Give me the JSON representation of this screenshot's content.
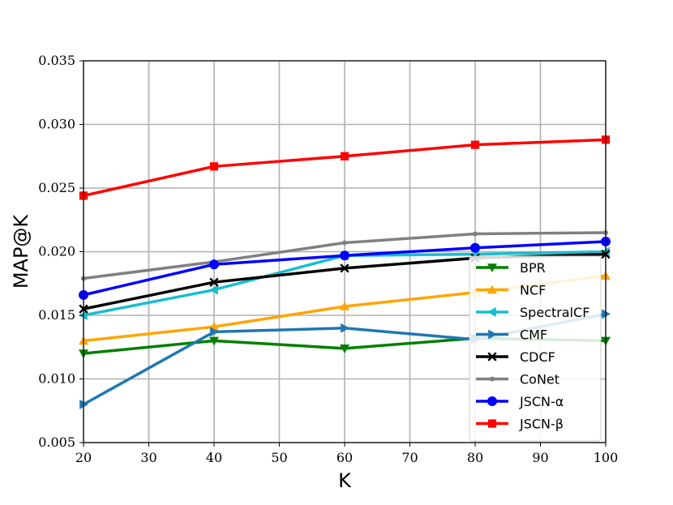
{
  "chart_data": {
    "type": "line",
    "xlabel": "K",
    "ylabel": "MAP@K",
    "xlim": [
      20,
      100
    ],
    "ylim": [
      0.005,
      0.035
    ],
    "x_ticks": [
      "20",
      "30",
      "40",
      "50",
      "60",
      "70",
      "80",
      "90",
      "100"
    ],
    "y_ticks": [
      "0.005",
      "0.010",
      "0.015",
      "0.020",
      "0.025",
      "0.030",
      "0.035"
    ],
    "grid": true,
    "legend_position": "lower-right",
    "x": [
      20,
      40,
      60,
      80,
      100
    ],
    "series": [
      {
        "name": "BPR",
        "color": "#008000",
        "marker": "triangle-down",
        "values": [
          0.012,
          0.013,
          0.0124,
          0.0132,
          0.013
        ]
      },
      {
        "name": "NCF",
        "color": "#ffa500",
        "marker": "triangle-up",
        "values": [
          0.013,
          0.0141,
          0.0157,
          0.0168,
          0.0181
        ]
      },
      {
        "name": "SpectralCF",
        "color": "#17becf",
        "marker": "triangle-left",
        "values": [
          0.015,
          0.017,
          0.0197,
          0.0198,
          0.02
        ]
      },
      {
        "name": "CMF",
        "color": "#1f77b4",
        "marker": "triangle-right",
        "values": [
          0.008,
          0.0137,
          0.014,
          0.0131,
          0.0151
        ]
      },
      {
        "name": "CDCF",
        "color": "#000000",
        "marker": "x",
        "values": [
          0.0155,
          0.0176,
          0.0187,
          0.0195,
          0.0198
        ]
      },
      {
        "name": "CoNet",
        "color": "#808080",
        "marker": "dot",
        "values": [
          0.0179,
          0.0192,
          0.0207,
          0.0214,
          0.0215
        ]
      },
      {
        "name": "JSCN-α",
        "color": "#0000ff",
        "marker": "circle",
        "values": [
          0.0166,
          0.019,
          0.0197,
          0.0203,
          0.0208
        ]
      },
      {
        "name": "JSCN-β",
        "color": "#ff0000",
        "marker": "square",
        "values": [
          0.0244,
          0.0267,
          0.0275,
          0.0284,
          0.0288
        ]
      }
    ]
  }
}
